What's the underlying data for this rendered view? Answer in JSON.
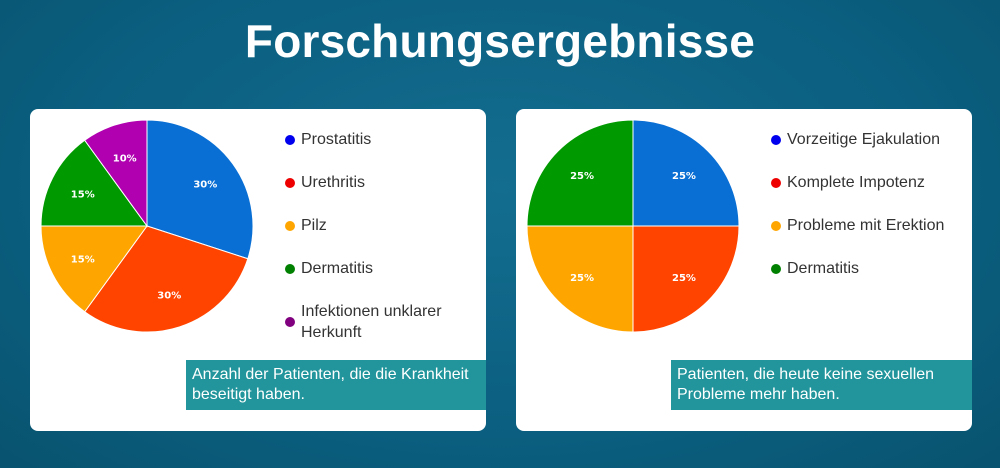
{
  "page": {
    "title": "Forschungsergebnisse"
  },
  "charts": [
    {
      "legend": [
        {
          "label": "Prostatitis",
          "color": "#0000ee"
        },
        {
          "label": "Urethritis",
          "color": "#ee0000"
        },
        {
          "label": "Pilz",
          "color": "#ffa500"
        },
        {
          "label": "Dermatitis",
          "color": "#008000"
        },
        {
          "label": "Infektionen unklarer Herkunft",
          "color": "#800080"
        }
      ],
      "slice_labels": [
        "30%",
        "30%",
        "15%",
        "15%",
        "10%"
      ],
      "caption": "Anzahl der Patienten, die die Krankheit beseitigt haben."
    },
    {
      "legend": [
        {
          "label": "Vorzeitige Ejakulation",
          "color": "#0000ee"
        },
        {
          "label": "Komplete Impotenz",
          "color": "#ee0000"
        },
        {
          "label": "Probleme mit Erektion",
          "color": "#ffa500"
        },
        {
          "label": "Dermatitis",
          "color": "#008000"
        }
      ],
      "slice_labels": [
        "25%",
        "25%",
        "25%",
        "25%"
      ],
      "caption": "Patienten, die heute keine sexuellen Probleme mehr haben."
    }
  ],
  "chart_data": [
    {
      "type": "pie",
      "title": "",
      "categories": [
        "Prostatitis",
        "Urethritis",
        "Pilz",
        "Dermatitis",
        "Infektionen unklarer Herkunft"
      ],
      "values": [
        30,
        30,
        15,
        15,
        10
      ],
      "colors": [
        "#0a6fd4",
        "#ff4400",
        "#ffa500",
        "#009a00",
        "#b000b0"
      ],
      "legend_position": "right",
      "caption": "Anzahl der Patienten, die die Krankheit beseitigt haben."
    },
    {
      "type": "pie",
      "title": "",
      "categories": [
        "Vorzeitige Ejakulation",
        "Komplete Impotenz",
        "Probleme mit Erektion",
        "Dermatitis"
      ],
      "values": [
        25,
        25,
        25,
        25
      ],
      "colors": [
        "#0a6fd4",
        "#ff4400",
        "#ffa500",
        "#009a00"
      ],
      "legend_position": "right",
      "caption": "Patienten, die heute keine sexuellen Probleme mehr haben."
    }
  ]
}
